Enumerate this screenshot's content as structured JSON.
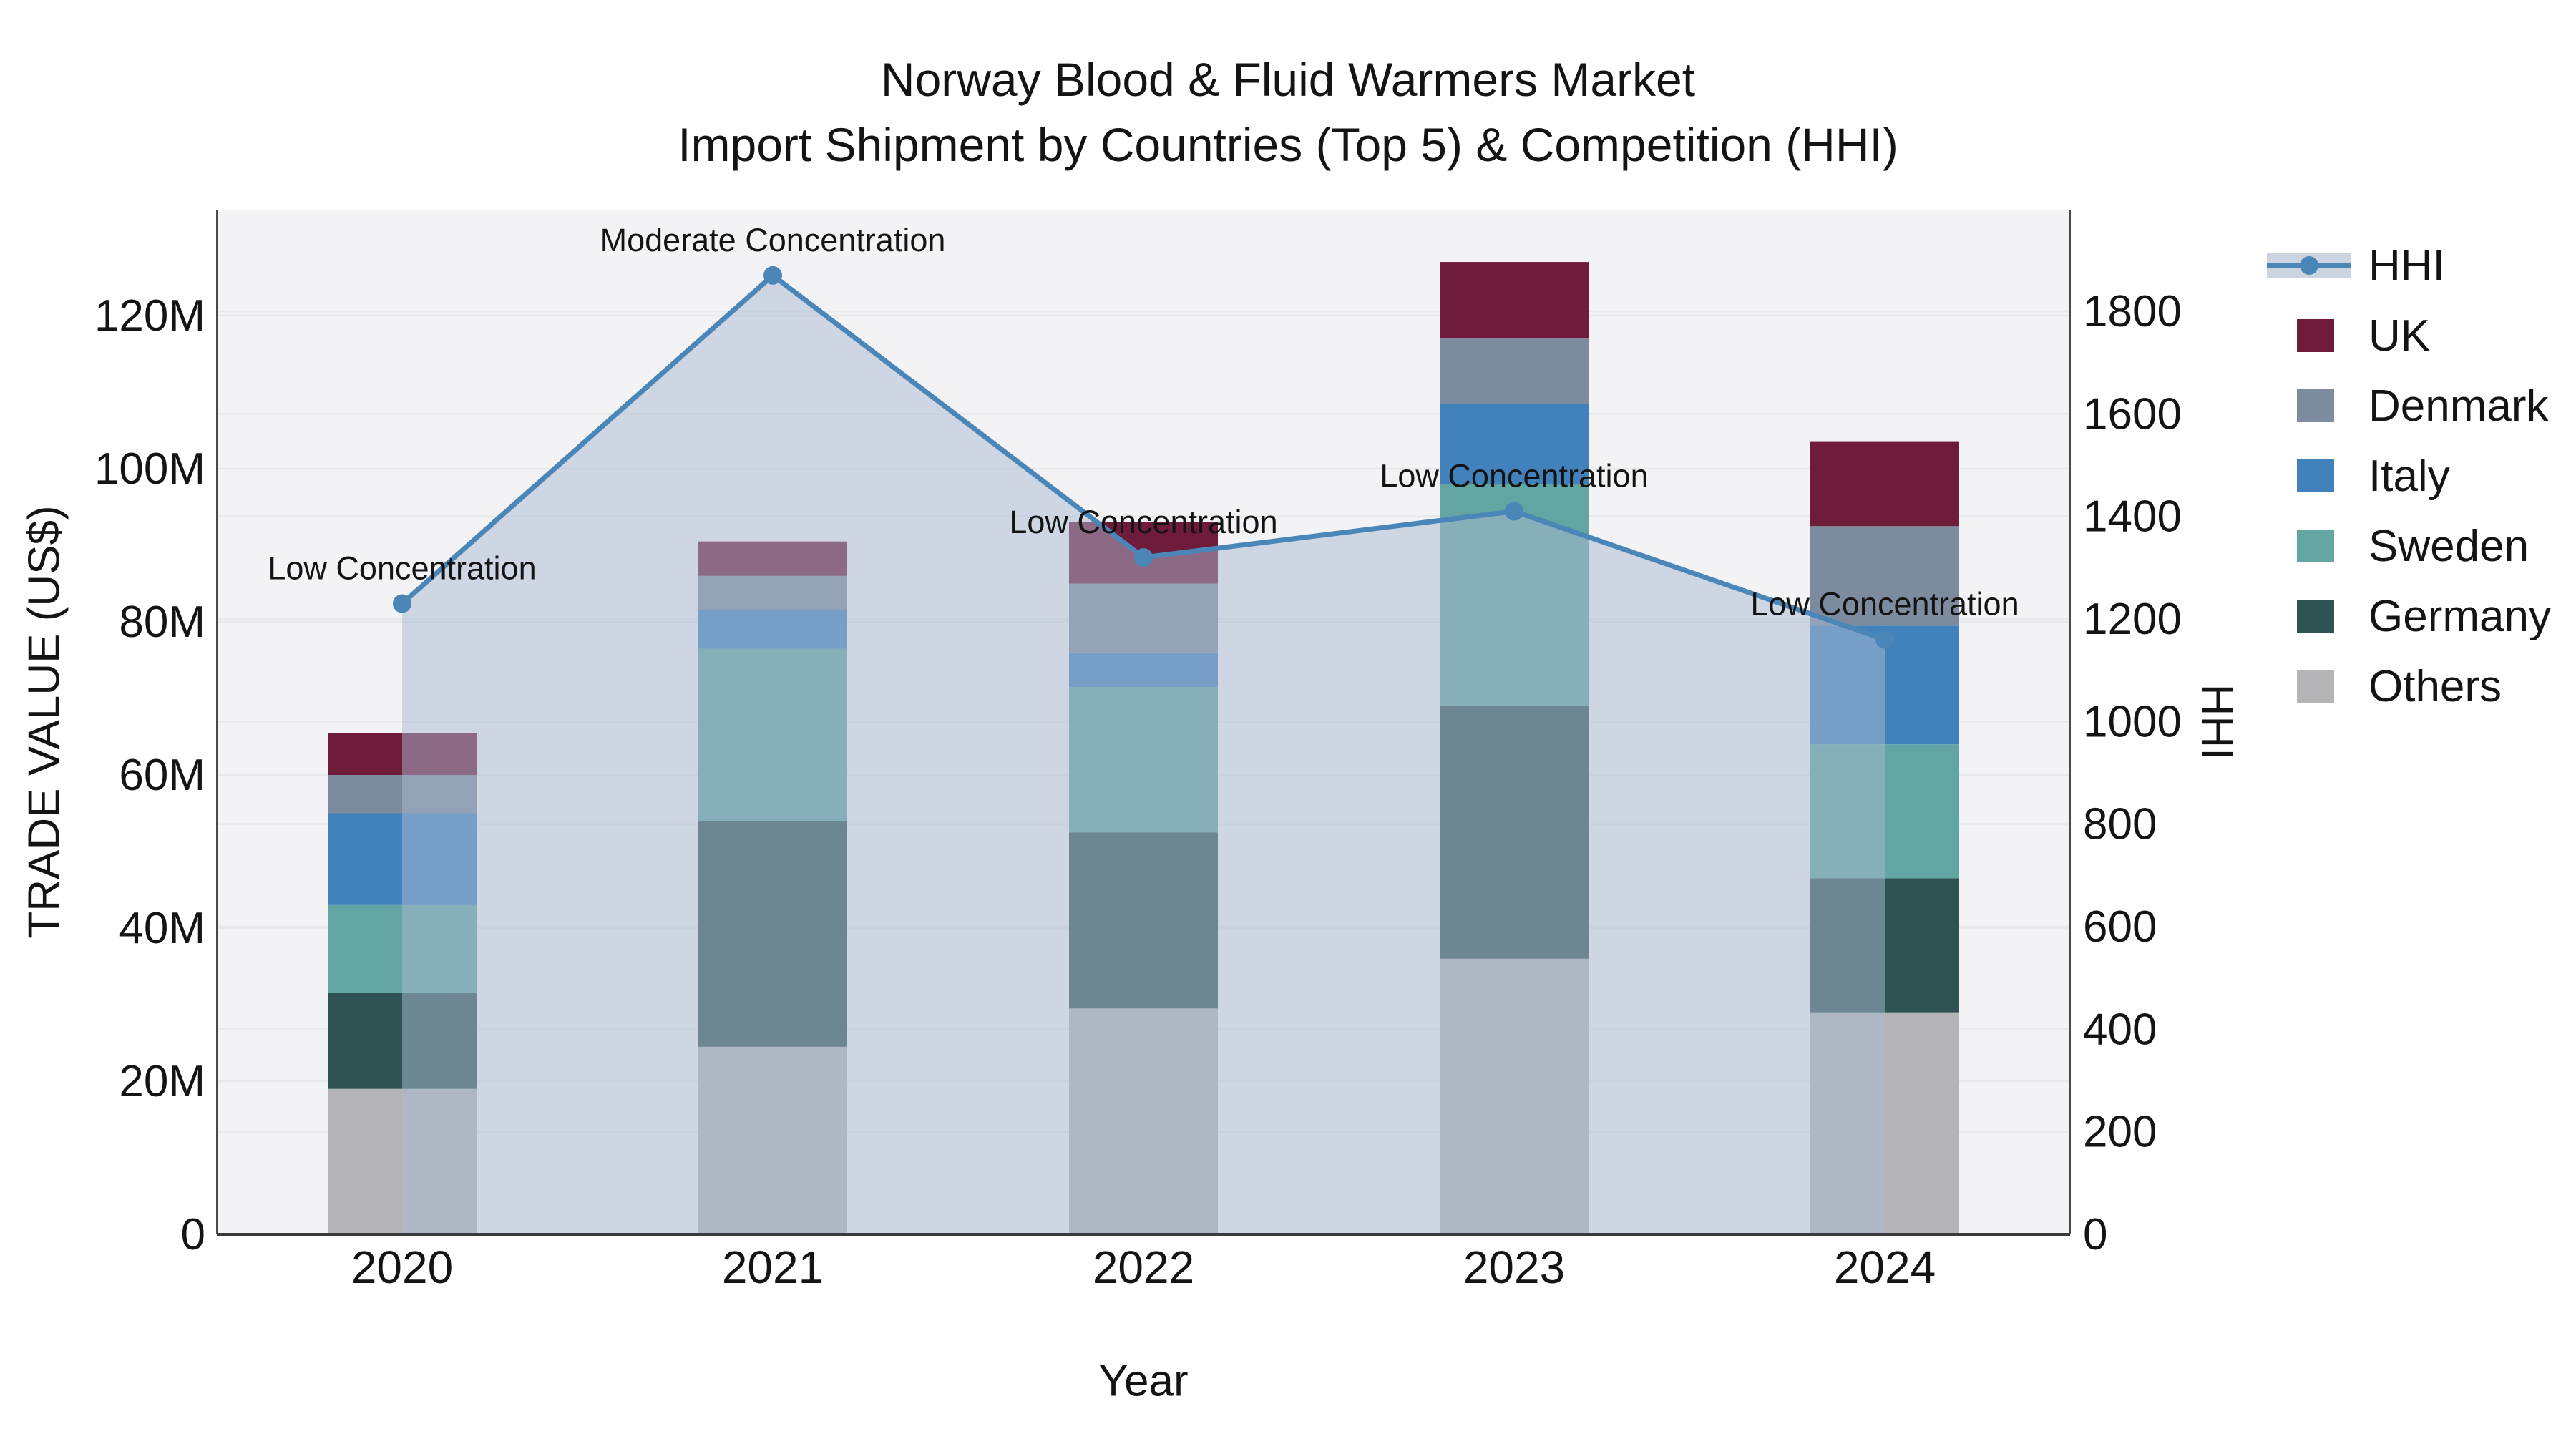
{
  "title": {
    "line1": "Norway Blood & Fluid Warmers Market",
    "line2": "Import Shipment by Countries (Top 5) & Competition (HHI)"
  },
  "chart_data": {
    "type": "bar+line",
    "categories": [
      "2020",
      "2021",
      "2022",
      "2023",
      "2024"
    ],
    "x_axis_label": "Year",
    "left_axis": {
      "label": "TRADE VALUE (US$)",
      "unit": "M US$",
      "tick_values": [
        0,
        20,
        40,
        60,
        80,
        100,
        120
      ],
      "tick_labels": [
        "0",
        "20M",
        "40M",
        "60M",
        "80M",
        "100M",
        "120M"
      ],
      "max_value": 134
    },
    "right_axis": {
      "label": "HHI",
      "tick_values": [
        0,
        200,
        400,
        600,
        800,
        1000,
        1200,
        1400,
        1600,
        1800
      ],
      "tick_labels": [
        "0",
        "200",
        "400",
        "600",
        "800",
        "1000",
        "1200",
        "1400",
        "1600",
        "1800"
      ],
      "max_value": 2000
    },
    "series": [
      {
        "name": "Others",
        "color": "#b4b4b6",
        "values": [
          19,
          24.5,
          29.5,
          36,
          29
        ]
      },
      {
        "name": "Germany",
        "color": "#2f5253",
        "values": [
          12.5,
          29.5,
          23,
          33,
          17.5
        ]
      },
      {
        "name": "Sweden",
        "color": "#63a5a3",
        "values": [
          11.5,
          22.5,
          19,
          29,
          17.5
        ]
      },
      {
        "name": "Italy",
        "color": "#4282bc",
        "values": [
          12,
          5,
          4.5,
          10.5,
          15.5
        ]
      },
      {
        "name": "Denmark",
        "color": "#7c8b9d",
        "values": [
          5,
          4.5,
          9,
          8.5,
          13
        ]
      },
      {
        "name": "UK",
        "color": "#6f1b3a",
        "values": [
          5.5,
          4.5,
          8,
          10,
          11
        ]
      }
    ],
    "stacked_totals": [
      65.5,
      90.5,
      93,
      127,
      103.5
    ],
    "hhi_line": {
      "name": "HHI",
      "color": "#4a86b8",
      "fill_color": "rgba(170,186,209,0.5)",
      "values": [
        1230,
        1870,
        1320,
        1410,
        1160
      ],
      "annotations": [
        "Low Concentration",
        "Moderate Concentration",
        "Low Concentration",
        "Low Concentration",
        "Low Concentration"
      ]
    },
    "legend_items": [
      {
        "name": "HHI",
        "kind": "line",
        "color": "#4a86b8"
      },
      {
        "name": "UK",
        "kind": "swatch",
        "color": "#6f1b3a"
      },
      {
        "name": "Denmark",
        "kind": "swatch",
        "color": "#7c8b9d"
      },
      {
        "name": "Italy",
        "kind": "swatch",
        "color": "#4282bc"
      },
      {
        "name": "Sweden",
        "kind": "swatch",
        "color": "#63a5a3"
      },
      {
        "name": "Germany",
        "kind": "swatch",
        "color": "#2f5253"
      },
      {
        "name": "Others",
        "kind": "swatch",
        "color": "#b4b4b6"
      }
    ],
    "style": {
      "plot_bg": "#f3f3f5",
      "grid_color": "#e6e8ea",
      "axis_line_color": "#4a4a4a",
      "text_color": "#141414"
    }
  }
}
